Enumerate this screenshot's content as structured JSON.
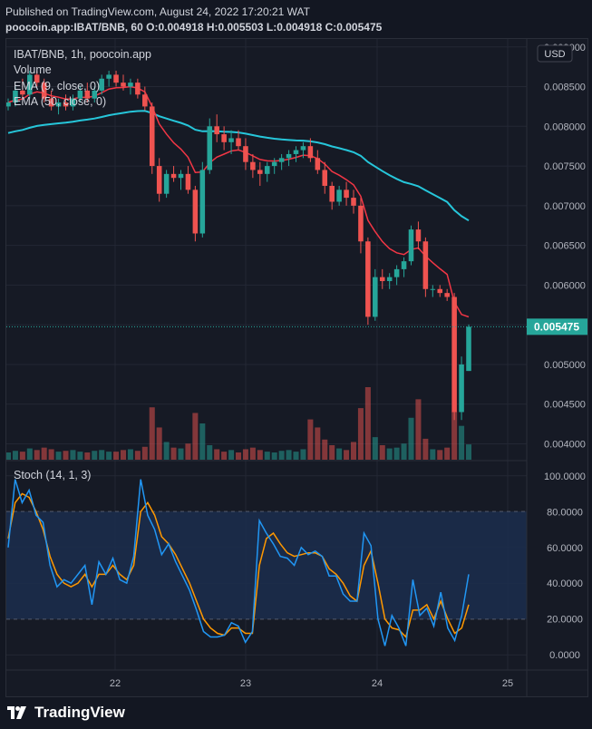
{
  "header": {
    "published": "Published on TradingView.com, August 24, 2022 17:20:21 WAT",
    "symbol_line": "poocoin.app:IBAT/BNB, 60  O:0.004918 H:0.005503 L:0.004918 C:0.005475"
  },
  "legend": {
    "title": "IBAT/BNB, 1h, poocoin.app",
    "volume": "Volume",
    "ema_short": "EMA (9, close, 0)",
    "ema_long": "EMA (50, close, 0)"
  },
  "currency_button": "USD",
  "last_price_label": "0.005475",
  "stoch": {
    "label": "Stoch (14, 1, 3)"
  },
  "footer": {
    "brand": "TradingView"
  },
  "colors": {
    "up": "#26a69a",
    "down": "#ef5350",
    "ema_short": "#f23645",
    "ema_long": "#26c6da",
    "stoch_k": "#2196f3",
    "stoch_d": "#ff9800",
    "band": "#1b2e4e"
  },
  "chart_data": [
    {
      "type": "candlestick",
      "title": "IBAT/BNB, 1h, poocoin.app",
      "x_ticks": [
        "22",
        "23",
        "24",
        "25"
      ],
      "y_ticks": [
        "0.009000",
        "0.008500",
        "0.008000",
        "0.007500",
        "0.007000",
        "0.006500",
        "0.006000",
        "0.005500",
        "0.005000",
        "0.004500",
        "0.004000"
      ],
      "ylim": [
        0.0038,
        0.0091
      ],
      "last_price": 0.005475,
      "last_close": 0.005475,
      "ohlc_series": "See candles (index, open, high, low, close) below",
      "candles": [
        [
          0,
          0.00825,
          0.00835,
          0.0082,
          0.0083
        ],
        [
          1,
          0.0083,
          0.0085,
          0.00825,
          0.00845
        ],
        [
          2,
          0.00845,
          0.0086,
          0.00835,
          0.0084
        ],
        [
          3,
          0.0084,
          0.0087,
          0.00835,
          0.00865
        ],
        [
          4,
          0.00865,
          0.0087,
          0.0085,
          0.00855
        ],
        [
          5,
          0.00855,
          0.0086,
          0.0083,
          0.00835
        ],
        [
          6,
          0.00835,
          0.00845,
          0.0082,
          0.00825
        ],
        [
          7,
          0.00825,
          0.00835,
          0.00815,
          0.0083
        ],
        [
          8,
          0.0083,
          0.0084,
          0.0082,
          0.00825
        ],
        [
          9,
          0.00825,
          0.0084,
          0.0082,
          0.00835
        ],
        [
          10,
          0.00835,
          0.0085,
          0.0083,
          0.00845
        ],
        [
          11,
          0.00845,
          0.00855,
          0.0083,
          0.00835
        ],
        [
          12,
          0.00835,
          0.0085,
          0.0083,
          0.00845
        ],
        [
          13,
          0.00845,
          0.00865,
          0.0084,
          0.0086
        ],
        [
          14,
          0.0086,
          0.0087,
          0.0085,
          0.00865
        ],
        [
          15,
          0.00865,
          0.0087,
          0.0085,
          0.00855
        ],
        [
          16,
          0.00855,
          0.00865,
          0.00845,
          0.0085
        ],
        [
          17,
          0.0085,
          0.0086,
          0.0084,
          0.00855
        ],
        [
          18,
          0.00855,
          0.0086,
          0.00835,
          0.0084
        ],
        [
          19,
          0.0084,
          0.0085,
          0.0082,
          0.00825
        ],
        [
          20,
          0.00825,
          0.0083,
          0.0074,
          0.0075
        ],
        [
          21,
          0.0075,
          0.0076,
          0.00705,
          0.00715
        ],
        [
          22,
          0.00715,
          0.00745,
          0.0071,
          0.0074
        ],
        [
          23,
          0.0074,
          0.0075,
          0.0073,
          0.00735
        ],
        [
          24,
          0.00735,
          0.00745,
          0.0072,
          0.0074
        ],
        [
          25,
          0.0074,
          0.0075,
          0.00715,
          0.0072
        ],
        [
          26,
          0.0072,
          0.00725,
          0.00655,
          0.00665
        ],
        [
          27,
          0.00665,
          0.00755,
          0.0066,
          0.00745
        ],
        [
          28,
          0.00745,
          0.0081,
          0.0074,
          0.008
        ],
        [
          29,
          0.008,
          0.00815,
          0.0078,
          0.0079
        ],
        [
          30,
          0.0079,
          0.008,
          0.0077,
          0.0078
        ],
        [
          31,
          0.0078,
          0.00795,
          0.00765,
          0.00785
        ],
        [
          32,
          0.00785,
          0.00795,
          0.0077,
          0.00775
        ],
        [
          33,
          0.00775,
          0.00785,
          0.00745,
          0.00755
        ],
        [
          34,
          0.00755,
          0.00765,
          0.00735,
          0.00745
        ],
        [
          35,
          0.00745,
          0.00755,
          0.00725,
          0.0074
        ],
        [
          36,
          0.0074,
          0.00755,
          0.0073,
          0.0075
        ],
        [
          37,
          0.0075,
          0.0076,
          0.0074,
          0.00755
        ],
        [
          38,
          0.00755,
          0.00765,
          0.00745,
          0.0076
        ],
        [
          39,
          0.0076,
          0.0077,
          0.0075,
          0.00765
        ],
        [
          40,
          0.00765,
          0.00775,
          0.00755,
          0.0077
        ],
        [
          41,
          0.0077,
          0.0078,
          0.0076,
          0.00775
        ],
        [
          42,
          0.00775,
          0.00785,
          0.00755,
          0.0076
        ],
        [
          43,
          0.0076,
          0.0077,
          0.0074,
          0.00745
        ],
        [
          44,
          0.00745,
          0.00755,
          0.00715,
          0.00725
        ],
        [
          45,
          0.00725,
          0.0073,
          0.00695,
          0.00705
        ],
        [
          46,
          0.00705,
          0.00725,
          0.007,
          0.0072
        ],
        [
          47,
          0.0072,
          0.0073,
          0.007,
          0.0071
        ],
        [
          48,
          0.0071,
          0.0072,
          0.0069,
          0.007
        ],
        [
          49,
          0.007,
          0.0071,
          0.0064,
          0.00655
        ],
        [
          50,
          0.00655,
          0.0066,
          0.0055,
          0.0056
        ],
        [
          51,
          0.0056,
          0.0062,
          0.00555,
          0.0061
        ],
        [
          52,
          0.0061,
          0.0062,
          0.00595,
          0.00605
        ],
        [
          53,
          0.00605,
          0.00615,
          0.00595,
          0.0061
        ],
        [
          54,
          0.0061,
          0.00625,
          0.006,
          0.0062
        ],
        [
          55,
          0.0062,
          0.00635,
          0.0061,
          0.0063
        ],
        [
          56,
          0.0063,
          0.00675,
          0.00625,
          0.0067
        ],
        [
          57,
          0.0067,
          0.0068,
          0.00645,
          0.00655
        ],
        [
          58,
          0.00655,
          0.0066,
          0.00585,
          0.00595
        ],
        [
          59,
          0.00595,
          0.006,
          0.00585,
          0.00595
        ],
        [
          60,
          0.00595,
          0.006,
          0.00585,
          0.0059
        ],
        [
          61,
          0.0059,
          0.00595,
          0.0058,
          0.00585
        ],
        [
          62,
          0.00585,
          0.0059,
          0.0043,
          0.0044
        ],
        [
          63,
          0.0044,
          0.0051,
          0.0043,
          0.005
        ],
        [
          64,
          0.004918,
          0.005503,
          0.004918,
          0.005475
        ]
      ],
      "volume": [
        0.9,
        1.1,
        1.0,
        1.4,
        1.2,
        1.5,
        1.3,
        1.0,
        1.1,
        1.2,
        1.0,
        0.9,
        1.1,
        1.2,
        1.0,
        1.0,
        1.2,
        1.3,
        1.1,
        1.6,
        6.5,
        4.0,
        2.2,
        1.5,
        1.4,
        2.0,
        5.8,
        4.5,
        1.8,
        1.3,
        1.0,
        1.2,
        0.9,
        1.3,
        1.5,
        1.2,
        1.0,
        0.9,
        1.1,
        1.2,
        1.0,
        1.3,
        5.0,
        4.0,
        2.5,
        1.8,
        1.4,
        1.2,
        2.2,
        6.4,
        9.0,
        2.8,
        1.8,
        1.4,
        1.5,
        2.0,
        5.2,
        7.5,
        2.6,
        1.3,
        1.2,
        1.5,
        6.0,
        4.2,
        1.9
      ]
    },
    {
      "type": "line",
      "title": "Stoch (14, 1, 3)",
      "y_ticks": [
        "100.0000",
        "80.0000",
        "60.0000",
        "40.0000",
        "20.0000",
        "0.0000"
      ],
      "ylim": [
        -8,
        108
      ],
      "bands": [
        20,
        80
      ],
      "series": [
        {
          "values": [
            60,
            98,
            85,
            92,
            78,
            74,
            50,
            38,
            42,
            40,
            45,
            50,
            28,
            52,
            45,
            54,
            42,
            40,
            55,
            98,
            78,
            70,
            56,
            62,
            52,
            44,
            36,
            25,
            13,
            10,
            10,
            11,
            18,
            16,
            7,
            13,
            75,
            68,
            62,
            55,
            54,
            50,
            60,
            56,
            58,
            55,
            44,
            44,
            34,
            30,
            30,
            68,
            61,
            20,
            5,
            22,
            15,
            5,
            42,
            22,
            26,
            16,
            35,
            15,
            8,
            22,
            45
          ]
        },
        {
          "values": [
            65,
            85,
            90,
            88,
            80,
            70,
            55,
            45,
            40,
            38,
            40,
            45,
            38,
            45,
            45,
            50,
            45,
            42,
            50,
            80,
            85,
            78,
            66,
            62,
            56,
            48,
            40,
            30,
            20,
            15,
            12,
            11,
            15,
            15,
            12,
            12,
            50,
            65,
            68,
            62,
            57,
            55,
            56,
            57,
            57,
            55,
            48,
            45,
            40,
            33,
            30,
            50,
            58,
            40,
            20,
            15,
            14,
            10,
            25,
            25,
            28,
            20,
            30,
            20,
            12,
            15,
            28
          ]
        }
      ],
      "x_ticks": [
        "22",
        "23",
        "24",
        "25"
      ]
    }
  ]
}
